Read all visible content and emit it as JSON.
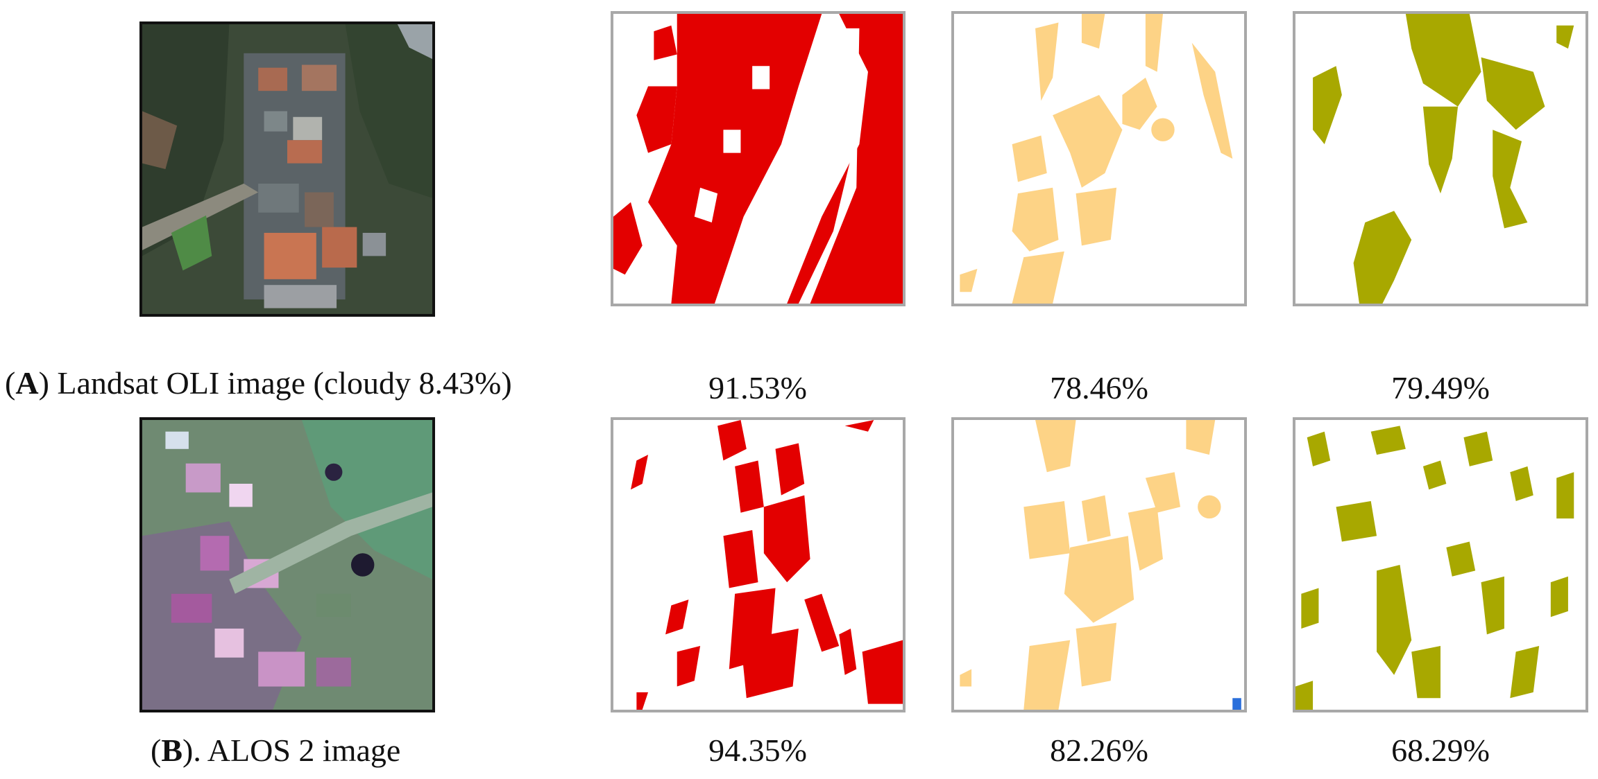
{
  "row_a": {
    "caption_open": "(",
    "caption_letter": "A",
    "caption_rest": ") Landsat OLI image (cloudy 8.43%)",
    "accuracies": [
      "91.53%",
      "78.46%",
      "79.49%"
    ]
  },
  "row_b": {
    "caption_open": "(",
    "caption_letter": "B",
    "caption_rest": "). ALOS 2 image",
    "accuracies": [
      "94.35%",
      "82.26%",
      "68.29%"
    ]
  },
  "colors": {
    "class_1": "#e30000",
    "class_2": "#fdd386",
    "class_3": "#a8a800",
    "map_border": "#a8a8a8"
  }
}
